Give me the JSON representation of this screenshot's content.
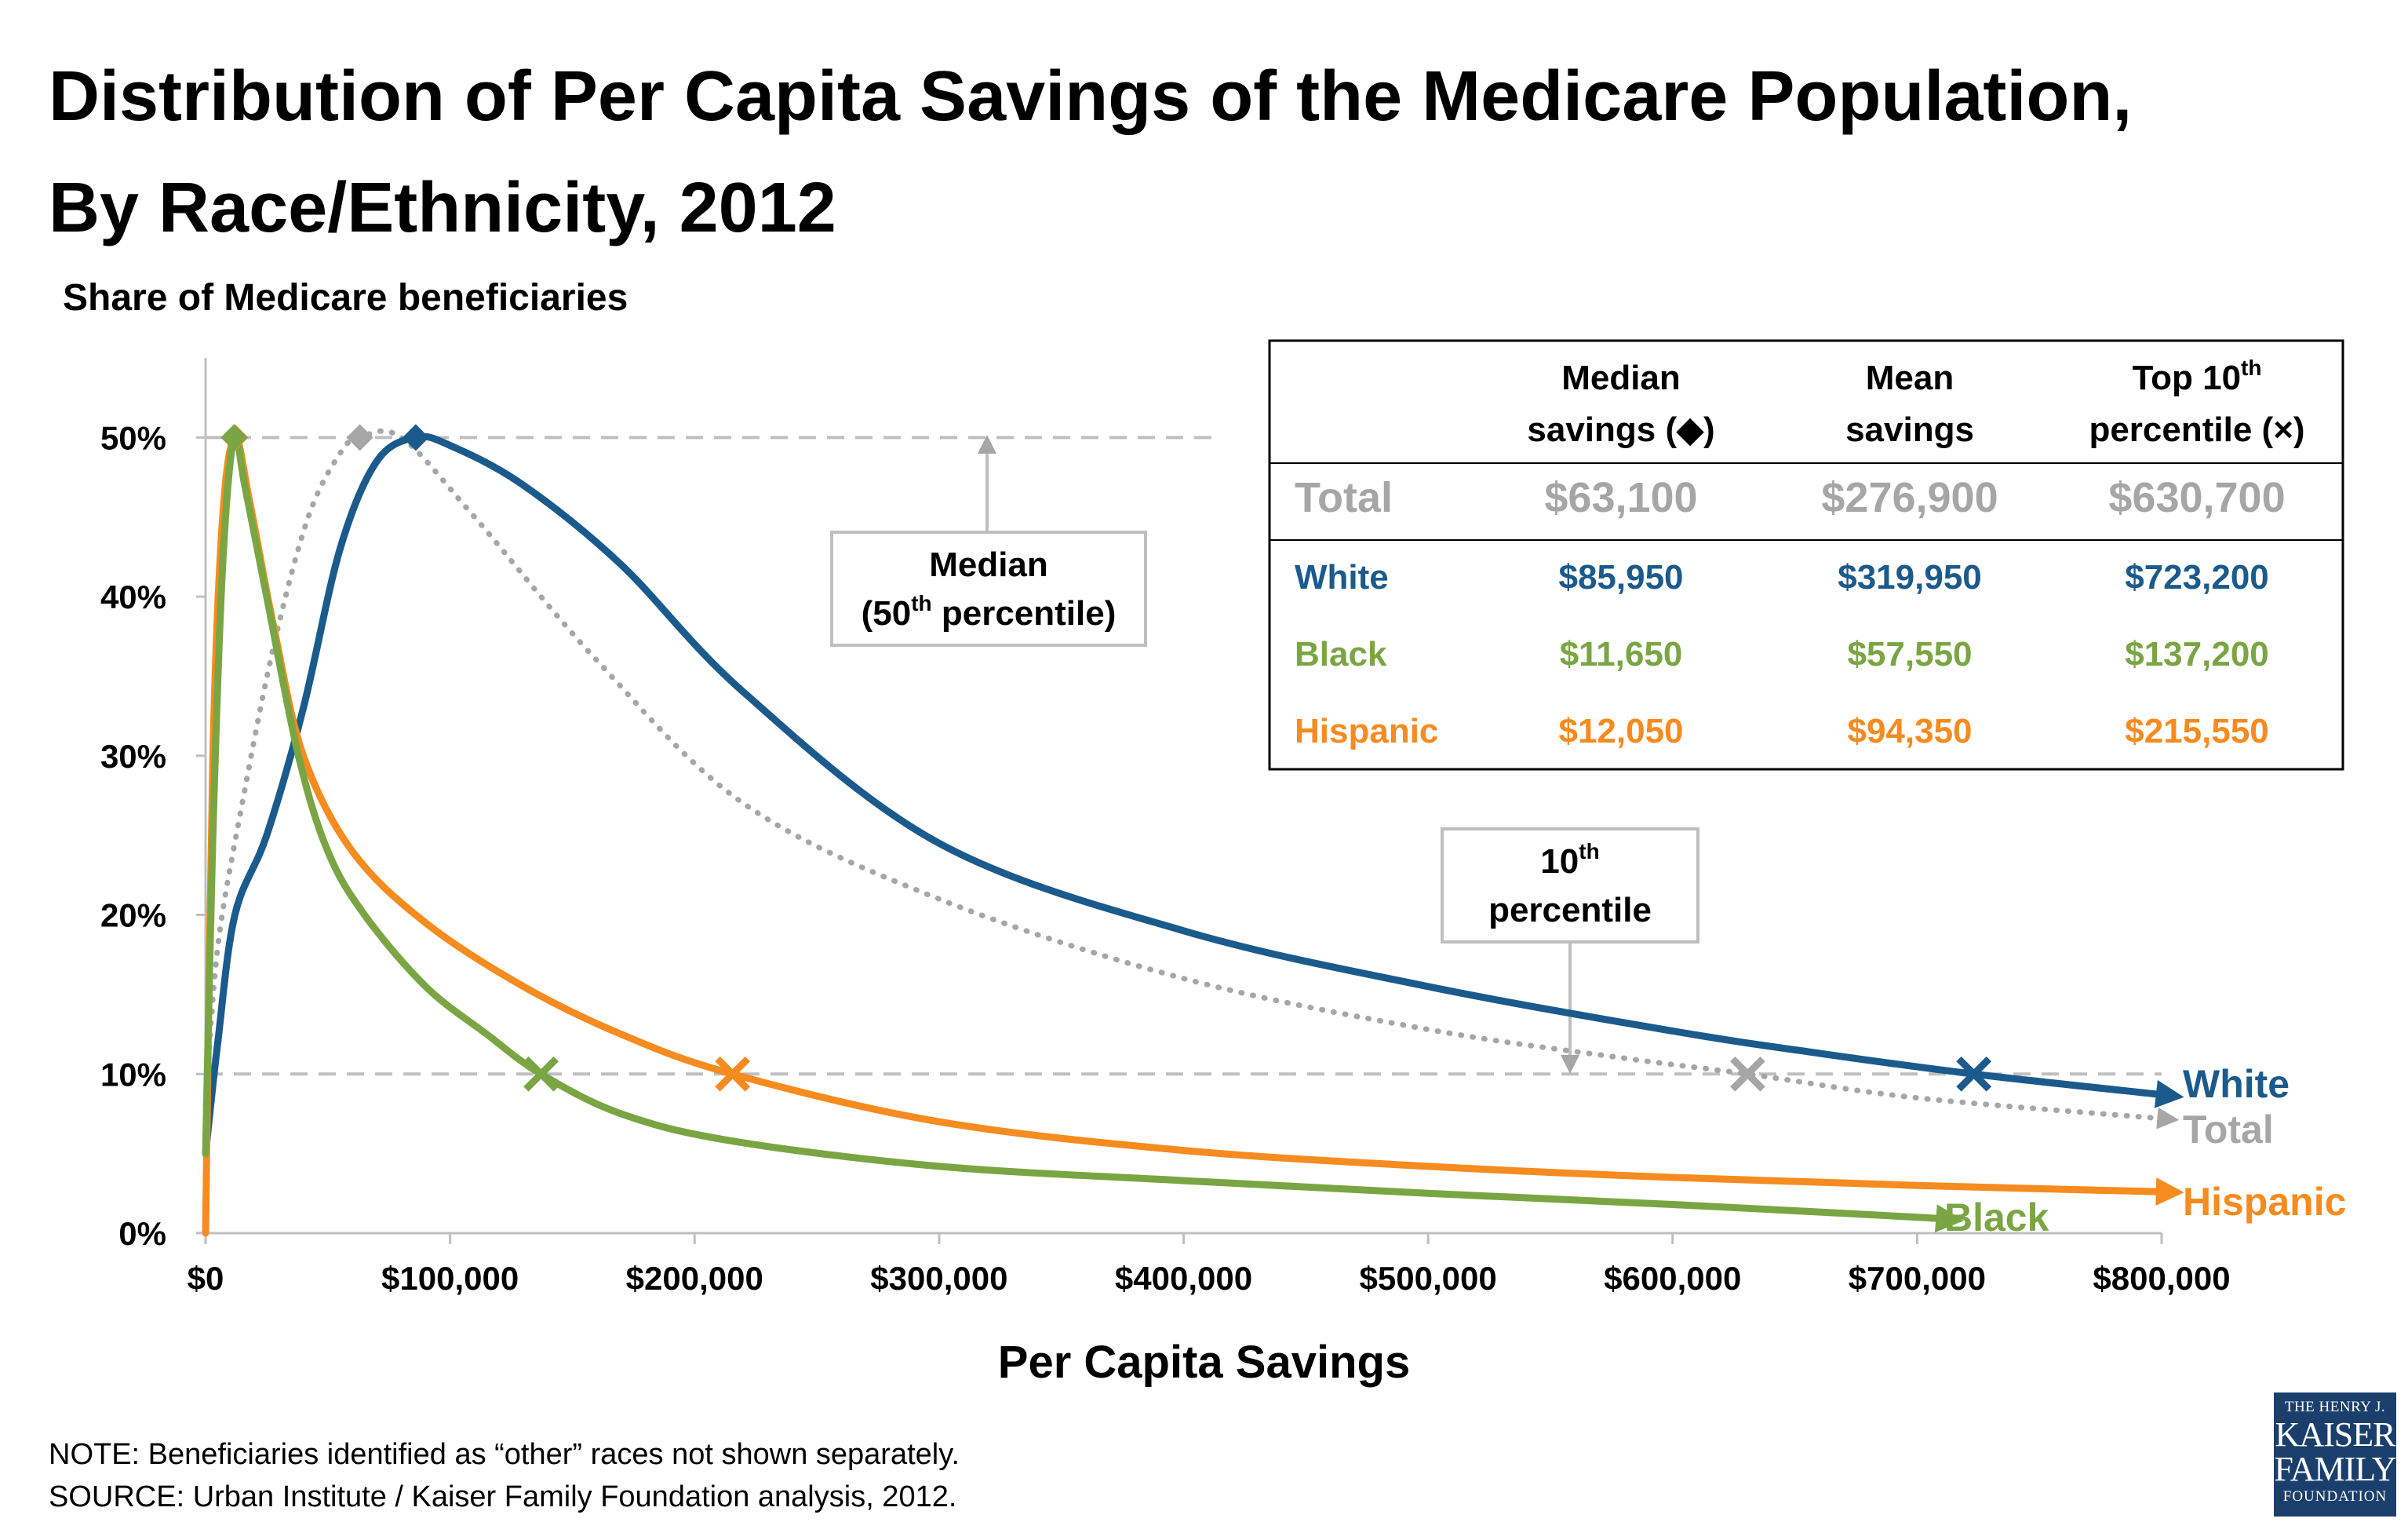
{
  "title": {
    "line1": "Distribution of Per Capita Savings of the Medicare Population,",
    "line2": "By Race/Ethnicity, 2012"
  },
  "y_axis_title": "Share of Medicare beneficiaries",
  "x_axis_title": "Per Capita Savings",
  "notes": {
    "note": "NOTE: Beneficiaries identified as “other” races not shown separately.",
    "source": "SOURCE: Urban Institute / Kaiser Family Foundation analysis, 2012."
  },
  "logo": {
    "line1": "THE HENRY J.",
    "line2": "KAISER",
    "line3": "FAMILY",
    "line4": "FOUNDATION"
  },
  "annotations": {
    "median_line1": "Median",
    "median_line2_pre": "(50",
    "median_line2_sup": "th",
    "median_line2_post": " percentile)",
    "p10_line1_main": "10",
    "p10_line1_sup": "th",
    "p10_line2": "percentile"
  },
  "table": {
    "headers": {
      "median_l1": "Median",
      "median_l2": "savings (◆)",
      "mean_l1": "Mean",
      "mean_l2": "savings",
      "top_l1": "Top 10",
      "top_sup": "th",
      "top_l2": "percentile (×)"
    },
    "rows": [
      {
        "label": "Total",
        "median": "$63,100",
        "mean": "$276,900",
        "top": "$630,700",
        "color": "#a6a6a6"
      },
      {
        "label": "White",
        "median": "$85,950",
        "mean": "$319,950",
        "top": "$723,200",
        "color": "#1b5a8c"
      },
      {
        "label": "Black",
        "median": "$11,650",
        "mean": "$57,550",
        "top": "$137,200",
        "color": "#7aa543"
      },
      {
        "label": "Hispanic",
        "median": "$12,050",
        "mean": "$94,350",
        "top": "$215,550",
        "color": "#f68b1f"
      }
    ]
  },
  "chart_data": {
    "type": "line",
    "title": "Distribution of Per Capita Savings of the Medicare Population, By Race/Ethnicity, 2012",
    "xlabel": "Per Capita Savings",
    "ylabel": "Share of Medicare beneficiaries",
    "xlim": [
      0,
      800000
    ],
    "ylim": [
      0,
      0.55
    ],
    "x_ticks": [
      {
        "value": 0,
        "label": "$0"
      },
      {
        "value": 100000,
        "label": "$100,000"
      },
      {
        "value": 200000,
        "label": "$200,000"
      },
      {
        "value": 300000,
        "label": "$300,000"
      },
      {
        "value": 400000,
        "label": "$400,000"
      },
      {
        "value": 500000,
        "label": "$500,000"
      },
      {
        "value": 600000,
        "label": "$600,000"
      },
      {
        "value": 700000,
        "label": "$700,000"
      },
      {
        "value": 800000,
        "label": "$800,000"
      }
    ],
    "y_ticks": [
      {
        "value": 0,
        "label": "0%"
      },
      {
        "value": 0.1,
        "label": "10%"
      },
      {
        "value": 0.2,
        "label": "20%"
      },
      {
        "value": 0.3,
        "label": "30%"
      },
      {
        "value": 0.4,
        "label": "40%"
      },
      {
        "value": 0.5,
        "label": "50%"
      }
    ],
    "reference_lines": [
      0.5,
      0.1
    ],
    "series": [
      {
        "name": "Total",
        "color": "#a6a6a6",
        "dotted": true,
        "points": [
          [
            0,
            0.08
          ],
          [
            5000,
            0.18
          ],
          [
            15000,
            0.27
          ],
          [
            28000,
            0.37
          ],
          [
            42000,
            0.45
          ],
          [
            55000,
            0.49
          ],
          [
            63100,
            0.5
          ],
          [
            80000,
            0.5
          ],
          [
            110000,
            0.45
          ],
          [
            160000,
            0.36
          ],
          [
            220000,
            0.27
          ],
          [
            300000,
            0.21
          ],
          [
            400000,
            0.16
          ],
          [
            500000,
            0.128
          ],
          [
            580000,
            0.11
          ],
          [
            630700,
            0.1
          ],
          [
            700000,
            0.085
          ],
          [
            800000,
            0.072
          ]
        ],
        "median_point": [
          63100,
          0.5
        ],
        "p10_point": [
          630700,
          0.1
        ]
      },
      {
        "name": "White",
        "color": "#1b5a8c",
        "dotted": false,
        "points": [
          [
            0,
            0.05
          ],
          [
            5000,
            0.12
          ],
          [
            12000,
            0.2
          ],
          [
            25000,
            0.25
          ],
          [
            40000,
            0.33
          ],
          [
            55000,
            0.43
          ],
          [
            70000,
            0.485
          ],
          [
            85950,
            0.5
          ],
          [
            100000,
            0.495
          ],
          [
            130000,
            0.47
          ],
          [
            170000,
            0.42
          ],
          [
            220000,
            0.34
          ],
          [
            300000,
            0.245
          ],
          [
            400000,
            0.19
          ],
          [
            500000,
            0.155
          ],
          [
            600000,
            0.127
          ],
          [
            660000,
            0.113
          ],
          [
            723200,
            0.1
          ],
          [
            800000,
            0.087
          ]
        ],
        "median_point": [
          85950,
          0.5
        ],
        "p10_point": [
          723200,
          0.1
        ]
      },
      {
        "name": "Hispanic",
        "color": "#f68b1f",
        "dotted": false,
        "points": [
          [
            0,
            0.0
          ],
          [
            3000,
            0.3
          ],
          [
            7000,
            0.45
          ],
          [
            12050,
            0.5
          ],
          [
            18000,
            0.46
          ],
          [
            28000,
            0.38
          ],
          [
            40000,
            0.3
          ],
          [
            60000,
            0.24
          ],
          [
            90000,
            0.195
          ],
          [
            130000,
            0.155
          ],
          [
            170000,
            0.125
          ],
          [
            215550,
            0.1
          ],
          [
            300000,
            0.07
          ],
          [
            400000,
            0.052
          ],
          [
            500000,
            0.042
          ],
          [
            600000,
            0.035
          ],
          [
            700000,
            0.03
          ],
          [
            800000,
            0.026
          ]
        ],
        "median_point": [
          12050,
          0.5
        ],
        "p10_point": [
          215550,
          0.1
        ]
      },
      {
        "name": "Black",
        "color": "#7aa543",
        "dotted": false,
        "points": [
          [
            0,
            0.05
          ],
          [
            3000,
            0.25
          ],
          [
            7000,
            0.42
          ],
          [
            11650,
            0.5
          ],
          [
            16000,
            0.47
          ],
          [
            25000,
            0.4
          ],
          [
            38000,
            0.3
          ],
          [
            50000,
            0.24
          ],
          [
            65000,
            0.2
          ],
          [
            90000,
            0.155
          ],
          [
            115000,
            0.125
          ],
          [
            137200,
            0.1
          ],
          [
            170000,
            0.075
          ],
          [
            215000,
            0.058
          ],
          [
            300000,
            0.042
          ],
          [
            400000,
            0.033
          ],
          [
            500000,
            0.025
          ],
          [
            600000,
            0.018
          ],
          [
            700000,
            0.01
          ],
          [
            710000,
            0.009
          ]
        ],
        "median_point": [
          11650,
          0.5
        ],
        "p10_point": [
          137200,
          0.1
        ]
      }
    ]
  }
}
